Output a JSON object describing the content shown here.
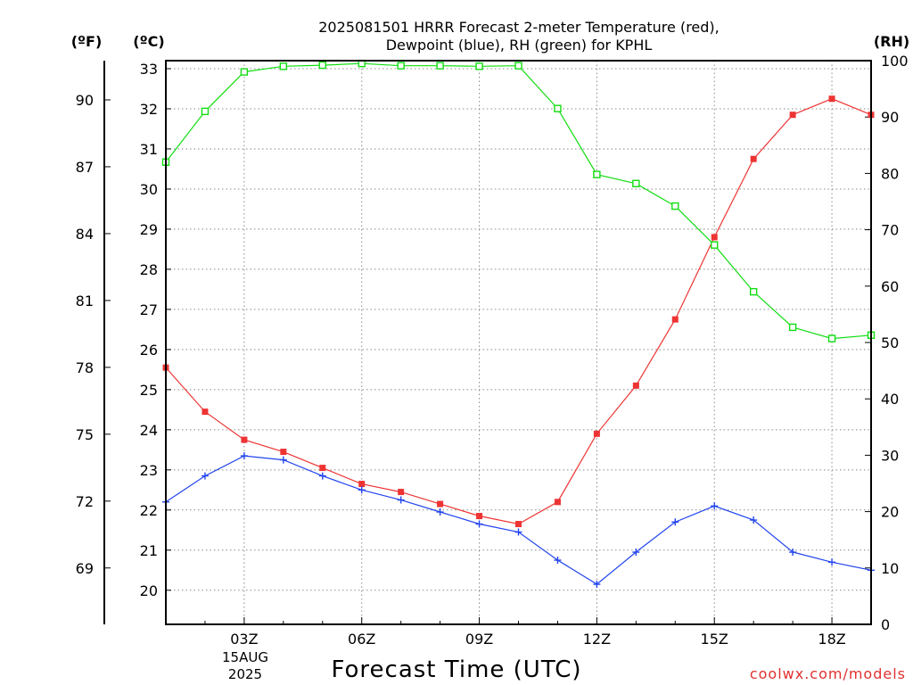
{
  "title_lines": [
    "2025081501 HRRR Forecast 2-meter Temperature (red),",
    "Dewpoint (blue), RH (green) for KPHL"
  ],
  "unit_labels": {
    "fahrenheit": "(ºF)",
    "celsius": "(ºC)",
    "rh": "(RH)"
  },
  "xlabel": "Forecast Time (UTC)",
  "date_labels": [
    "15AUG",
    "2025"
  ],
  "watermark": "coolwx.com/models",
  "chart_data": {
    "type": "line",
    "x": [
      1,
      2,
      3,
      4,
      5,
      6,
      7,
      8,
      9,
      10,
      11,
      12,
      13,
      14,
      15,
      16,
      17,
      18,
      19
    ],
    "x_ticks": [
      3,
      6,
      9,
      12,
      15,
      18
    ],
    "x_tick_labels": [
      "03Z",
      "06Z",
      "09Z",
      "12Z",
      "15Z",
      "18Z"
    ],
    "xlim": [
      1,
      19
    ],
    "celsius_ticks": [
      20,
      21,
      22,
      23,
      24,
      25,
      26,
      27,
      28,
      29,
      30,
      31,
      32,
      33
    ],
    "ylim_celsius": [
      19.15,
      33.2
    ],
    "fahrenheit_ticks": [
      69,
      72,
      75,
      78,
      81,
      84,
      87,
      90
    ],
    "rh_ticks": [
      0,
      10,
      20,
      30,
      40,
      50,
      60,
      70,
      80,
      90,
      100
    ],
    "ylim_rh": [
      0,
      100
    ],
    "grid": true,
    "series": [
      {
        "axis": "celsius",
        "color": "#ee3333",
        "marker": "filled-square",
        "values": [
          25.55,
          24.45,
          23.75,
          23.45,
          23.05,
          22.65,
          22.45,
          22.15,
          21.85,
          21.65,
          22.2,
          23.9,
          25.1,
          26.75,
          28.8,
          30.75,
          31.85,
          32.25,
          31.85
        ]
      },
      {
        "axis": "celsius",
        "color": "#2244ee",
        "marker": "plus",
        "values": [
          22.2,
          22.85,
          23.35,
          23.25,
          22.85,
          22.5,
          22.25,
          21.95,
          21.65,
          21.45,
          20.75,
          20.15,
          20.95,
          21.7,
          22.1,
          21.75,
          20.95,
          20.7,
          20.5
        ]
      },
      {
        "axis": "rh",
        "color": "#11dd11",
        "marker": "open-square",
        "values": [
          82,
          91,
          98,
          99,
          99.2,
          99.5,
          99.1,
          99.1,
          99,
          99.1,
          91.5,
          79.8,
          78.2,
          74.2,
          67.3,
          59,
          52.7,
          50.7,
          51.3
        ]
      }
    ]
  }
}
